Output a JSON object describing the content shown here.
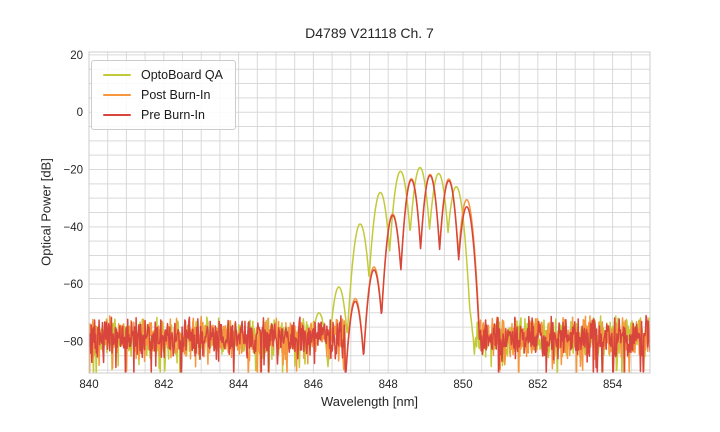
{
  "chart_data": {
    "type": "line",
    "title": "D4789 V21118 Ch. 7",
    "xlabel": "Wavelength [nm]",
    "ylabel": "Optical Power [dB]",
    "xlim": [
      840,
      855
    ],
    "ylim": [
      -91,
      21
    ],
    "xticks": [
      840,
      842,
      844,
      846,
      848,
      850,
      852,
      854
    ],
    "xtick_labels": [
      "840",
      "842",
      "844",
      "846",
      "848",
      "850",
      "852",
      "854"
    ],
    "yticks": [
      20,
      0,
      -20,
      -40,
      -60,
      -80
    ],
    "ytick_labels": [
      "20",
      "0",
      "−20",
      "−40",
      "−60",
      "−80"
    ],
    "grid": {
      "on": true,
      "minor_x_step_nm": 0.5,
      "minor_y_step_db": 5,
      "color": "#d9d9d9"
    },
    "axes": {
      "edge_color": "#cccccc",
      "text_color": "#262626",
      "background": "#ffffff"
    },
    "legend": {
      "position": "upper left"
    },
    "noise_floor": {
      "mean_db": -78.5,
      "spike_top_db": -71,
      "spike_bottom_db": -90
    },
    "series": [
      {
        "name": "OptoBoard QA",
        "color": "#c3ca3a",
        "mode_spacing_nm": 0.5,
        "mode_width_a_db_per_nm2": 330,
        "noise_until_nm": 846.3,
        "noise_from_nm": 850.27,
        "peak_nm": 848.85,
        "peak_db": -19.3,
        "modes_nm_db": [
          [
            846.15,
            -70
          ],
          [
            846.68,
            -61
          ],
          [
            847.25,
            -39
          ],
          [
            847.79,
            -28
          ],
          [
            848.33,
            -20.6
          ],
          [
            848.85,
            -19.3
          ],
          [
            849.35,
            -21.4
          ],
          [
            849.82,
            -26
          ],
          [
            850.05,
            -63
          ]
        ]
      },
      {
        "name": "Post Burn-In",
        "color": "#f6973f",
        "mode_spacing_nm": 0.5,
        "mode_width_a_db_per_nm2": 400,
        "noise_until_nm": 846.85,
        "noise_from_nm": 850.45,
        "peak_nm": 849.12,
        "peak_db": -21.7,
        "modes_nm_db": [
          [
            847.12,
            -65
          ],
          [
            847.62,
            -54
          ],
          [
            848.12,
            -35.5
          ],
          [
            848.62,
            -23.2
          ],
          [
            849.12,
            -21.7
          ],
          [
            849.62,
            -23.3
          ],
          [
            850.1,
            -30.5
          ]
        ]
      },
      {
        "name": "Pre Burn-In",
        "color": "#d8453c",
        "mode_spacing_nm": 0.5,
        "mode_width_a_db_per_nm2": 400,
        "noise_until_nm": 846.85,
        "noise_from_nm": 850.45,
        "peak_nm": 849.12,
        "peak_db": -22.1,
        "modes_nm_db": [
          [
            847.12,
            -66
          ],
          [
            847.62,
            -55
          ],
          [
            848.12,
            -36
          ],
          [
            848.62,
            -23.6
          ],
          [
            849.12,
            -22.1
          ],
          [
            849.62,
            -23.9
          ],
          [
            850.1,
            -33
          ]
        ]
      }
    ]
  }
}
